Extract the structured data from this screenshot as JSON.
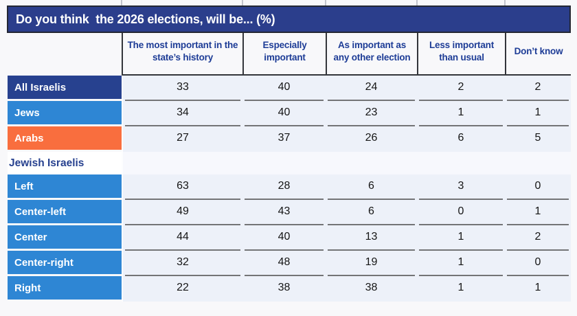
{
  "chart_data": {
    "type": "table",
    "title": "Do you think  the 2026 elections, will be... (%)",
    "columns": [
      "The most important in the state’s history",
      "Especially important",
      "As important as any other election",
      "Less important than usual",
      "Don’t know"
    ],
    "rows": [
      {
        "label": "All Israelis",
        "style": "navy",
        "values": [
          33,
          40,
          24,
          2,
          2
        ]
      },
      {
        "label": "Jews",
        "style": "blue",
        "values": [
          34,
          40,
          23,
          1,
          1
        ]
      },
      {
        "label": "Arabs",
        "style": "orange",
        "values": [
          27,
          37,
          26,
          6,
          5
        ]
      },
      {
        "label": "Jewish Israelis",
        "style": "section",
        "values": []
      },
      {
        "label": "Left",
        "style": "blue",
        "values": [
          63,
          28,
          6,
          3,
          0
        ]
      },
      {
        "label": "Center-left",
        "style": "blue",
        "values": [
          49,
          43,
          6,
          0,
          1
        ]
      },
      {
        "label": "Center",
        "style": "blue",
        "values": [
          44,
          40,
          13,
          1,
          2
        ]
      },
      {
        "label": "Center-right",
        "style": "blue",
        "values": [
          32,
          48,
          19,
          1,
          0
        ]
      },
      {
        "label": "Right",
        "style": "blue",
        "values": [
          22,
          38,
          38,
          1,
          1
        ]
      }
    ],
    "layout": {
      "grid": "horizontal separators between data rows only",
      "legend": "none"
    }
  },
  "colors": {
    "title_bar_bg": "#2b3e8c",
    "title_bar_border": "#232733",
    "header_text": "#1d3c96",
    "row_navy": "#27418f",
    "row_blue": "#2e86d4",
    "row_orange": "#f96e3e",
    "data_cell_bg": "#edf1f9",
    "section_row_bg": "#f7f8fd",
    "separator": "#737476",
    "page_bg": "#f8f8fa"
  }
}
